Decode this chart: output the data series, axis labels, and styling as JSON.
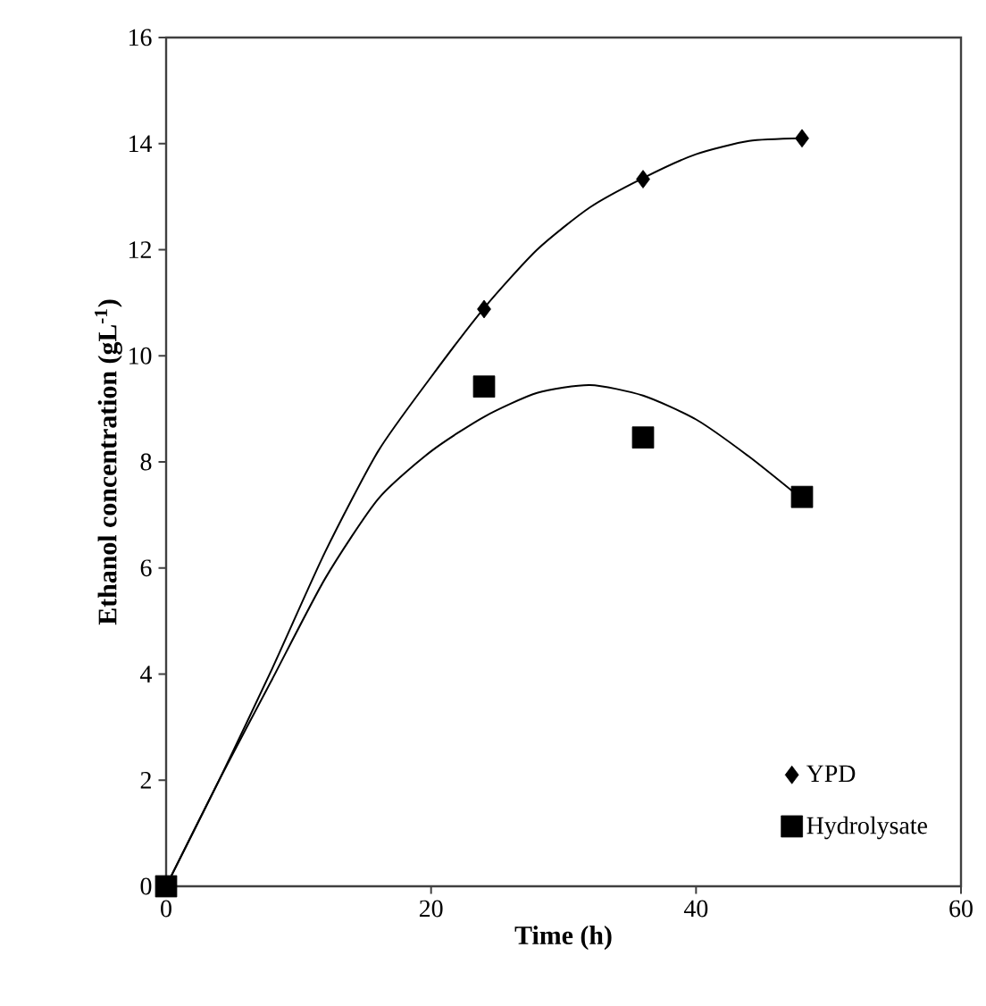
{
  "chart_data": {
    "type": "scatter",
    "xlabel": "Time (h)",
    "ylabel": "Ethanol concentration (gL$^{-1}$)",
    "xlim": [
      0,
      60
    ],
    "xticks": [
      0,
      20,
      40,
      60
    ],
    "ylim": [
      0,
      16
    ],
    "yticks": [
      0,
      2,
      4,
      6,
      8,
      10,
      12,
      14,
      16
    ],
    "grid": false,
    "legend": "bottom right",
    "series": [
      {
        "name": "YPD",
        "marker": "diamond",
        "color": "#000000",
        "x": [
          24,
          36,
          48
        ],
        "values": [
          10.88,
          13.33,
          14.1
        ]
      },
      {
        "name": "Hydrolysate",
        "marker": "square",
        "color": "#000000",
        "x": [
          0,
          24,
          36,
          48
        ],
        "values": [
          0,
          9.42,
          8.46,
          7.34
        ]
      },
      {
        "type": "line",
        "marker": "none",
        "line_style": "solid",
        "color": "#000000",
        "x": [
          0,
          4,
          8,
          12,
          16,
          20,
          24,
          28,
          32,
          36,
          40,
          44,
          48
        ],
        "values": [
          0,
          2,
          4.1,
          6.3,
          8.2,
          9.6,
          10.9,
          12.0,
          12.8,
          13.35,
          13.8,
          14.05,
          14.1
        ]
      },
      {
        "type": "line",
        "marker": "none",
        "line_style": "solid",
        "color": "#000000",
        "x": [
          0,
          4,
          8,
          12,
          16,
          20,
          24,
          28,
          32,
          36,
          40,
          44,
          48
        ],
        "values": [
          0,
          2,
          3.9,
          5.8,
          7.3,
          8.2,
          8.85,
          9.3,
          9.45,
          9.25,
          8.8,
          8.1,
          7.3
        ]
      }
    ]
  }
}
